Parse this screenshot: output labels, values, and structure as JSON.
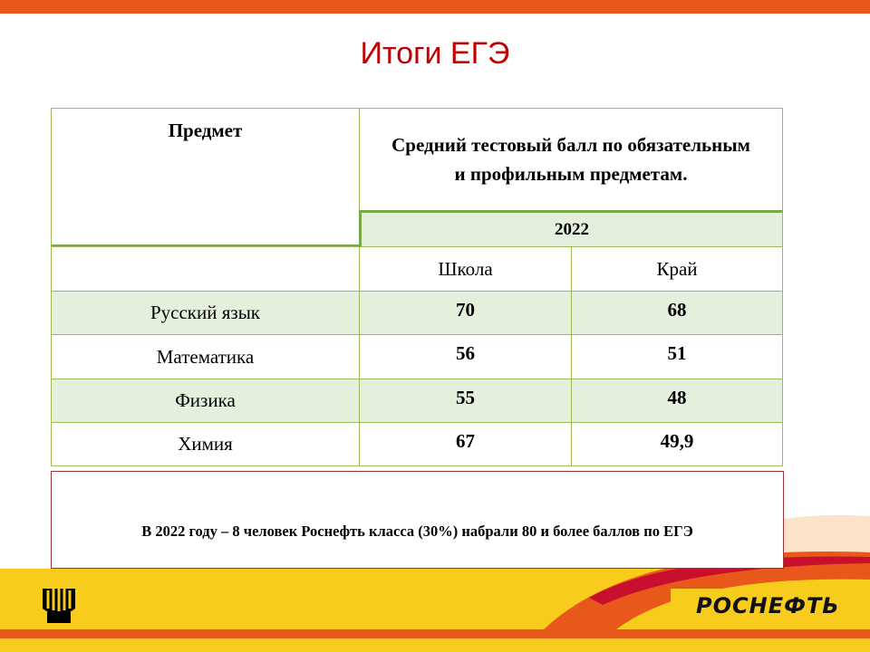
{
  "title": "Итоги ЕГЭ",
  "table": {
    "header": {
      "subject": "Предмет",
      "metric": "Средний тестовый балл по обязательным и профильным предметам.",
      "year": "2022",
      "columns": [
        "Школа",
        "Край"
      ]
    },
    "rows": [
      [
        "Русский язык",
        "70",
        "68"
      ],
      [
        "Математика",
        "56",
        "51"
      ],
      [
        "Физика",
        "55",
        "48"
      ],
      [
        "Химия",
        "67",
        "49,9"
      ]
    ]
  },
  "note": "В 2022 году – 8 человек Роснефть класса (30%) набрали 80 и более баллов по ЕГЭ",
  "logo": "РОСНЕФТЬ"
}
